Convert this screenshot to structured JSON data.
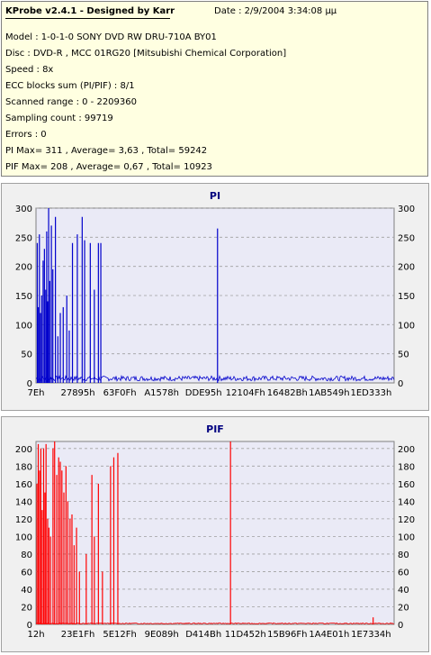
{
  "info": {
    "title": "KProbe v2.4.1 - Designed by Karr",
    "date": "Date : 2/9/2004 3:34:08 μμ",
    "lines": [
      "Model : 1-0-1-0 SONY     DVD RW DRU-710A  BY01",
      "Disc : DVD-R , MCC 01RG20  [Mitsubishi Chemical Corporation]",
      "Speed : 8x",
      "ECC blocks sum (PI/PIF) : 8/1",
      "Scanned range : 0 - 2209360",
      "Sampling count : 99719",
      "Errors : 0",
      "PI Max= 311 , Average= 3,63 , Total= 59242",
      "PIF Max= 208 , Average= 0,67 , Total= 10923"
    ]
  },
  "colors": {
    "pi_series": "#0000cc",
    "pif_series": "#ff0000",
    "plot_bg": "#eaeaf6",
    "title_color": "#000080"
  },
  "chart_data": [
    {
      "type": "bar",
      "title": "PI",
      "ylim": [
        0,
        300
      ],
      "yticks": [
        0,
        50,
        100,
        150,
        200,
        250,
        300
      ],
      "xlim": [
        0,
        2209360
      ],
      "xtick_labels": [
        "7Eh",
        "27895h",
        "63F0Fh",
        "A1578h",
        "DDE95h",
        "12104Fh",
        "16482Bh",
        "1AB549h",
        "1ED333h"
      ],
      "grid": true,
      "spikes": [
        {
          "x": 8000,
          "y": 240
        },
        {
          "x": 15000,
          "y": 130
        },
        {
          "x": 21000,
          "y": 255
        },
        {
          "x": 28000,
          "y": 120
        },
        {
          "x": 35000,
          "y": 150
        },
        {
          "x": 44000,
          "y": 210
        },
        {
          "x": 52000,
          "y": 230
        },
        {
          "x": 60000,
          "y": 160
        },
        {
          "x": 66000,
          "y": 260
        },
        {
          "x": 72000,
          "y": 140
        },
        {
          "x": 78000,
          "y": 300
        },
        {
          "x": 85000,
          "y": 175
        },
        {
          "x": 95000,
          "y": 270
        },
        {
          "x": 104000,
          "y": 195
        },
        {
          "x": 120000,
          "y": 285
        },
        {
          "x": 135000,
          "y": 80
        },
        {
          "x": 150000,
          "y": 120
        },
        {
          "x": 168000,
          "y": 130
        },
        {
          "x": 190000,
          "y": 150
        },
        {
          "x": 205000,
          "y": 90
        },
        {
          "x": 225000,
          "y": 240
        },
        {
          "x": 255000,
          "y": 255
        },
        {
          "x": 285000,
          "y": 285
        },
        {
          "x": 300000,
          "y": 245
        },
        {
          "x": 335000,
          "y": 240
        },
        {
          "x": 360000,
          "y": 160
        },
        {
          "x": 385000,
          "y": 240
        },
        {
          "x": 400000,
          "y": 240
        },
        {
          "x": 1120000,
          "y": 265
        }
      ],
      "baseline": 7
    },
    {
      "type": "bar",
      "title": "PIF",
      "ylim": [
        0,
        208
      ],
      "yticks": [
        0,
        20,
        40,
        60,
        80,
        100,
        120,
        140,
        160,
        180,
        200
      ],
      "xlim": [
        0,
        2209360
      ],
      "xtick_labels": [
        "12h",
        "23E1Fh",
        "5E12Fh",
        "9E089h",
        "D414Bh",
        "11D452h",
        "15B96Fh",
        "1A4E01h",
        "1E7334h"
      ],
      "grid": true,
      "spikes": [
        {
          "x": 6000,
          "y": 160
        },
        {
          "x": 14000,
          "y": 205
        },
        {
          "x": 22000,
          "y": 175
        },
        {
          "x": 30000,
          "y": 200
        },
        {
          "x": 38000,
          "y": 130
        },
        {
          "x": 47000,
          "y": 200
        },
        {
          "x": 55000,
          "y": 150
        },
        {
          "x": 62000,
          "y": 205
        },
        {
          "x": 72000,
          "y": 120
        },
        {
          "x": 80000,
          "y": 110
        },
        {
          "x": 90000,
          "y": 100
        },
        {
          "x": 105000,
          "y": 200
        },
        {
          "x": 115000,
          "y": 208
        },
        {
          "x": 128000,
          "y": 170
        },
        {
          "x": 140000,
          "y": 190
        },
        {
          "x": 150000,
          "y": 185
        },
        {
          "x": 160000,
          "y": 175
        },
        {
          "x": 172000,
          "y": 150
        },
        {
          "x": 185000,
          "y": 180
        },
        {
          "x": 196000,
          "y": 140
        },
        {
          "x": 210000,
          "y": 120
        },
        {
          "x": 222000,
          "y": 125
        },
        {
          "x": 235000,
          "y": 90
        },
        {
          "x": 250000,
          "y": 110
        },
        {
          "x": 268000,
          "y": 60
        },
        {
          "x": 310000,
          "y": 80
        },
        {
          "x": 345000,
          "y": 170
        },
        {
          "x": 360000,
          "y": 100
        },
        {
          "x": 385000,
          "y": 160
        },
        {
          "x": 410000,
          "y": 60
        },
        {
          "x": 460000,
          "y": 180
        },
        {
          "x": 480000,
          "y": 190
        },
        {
          "x": 505000,
          "y": 195
        },
        {
          "x": 1200000,
          "y": 208
        },
        {
          "x": 2080000,
          "y": 8
        }
      ],
      "baseline": 1
    }
  ]
}
